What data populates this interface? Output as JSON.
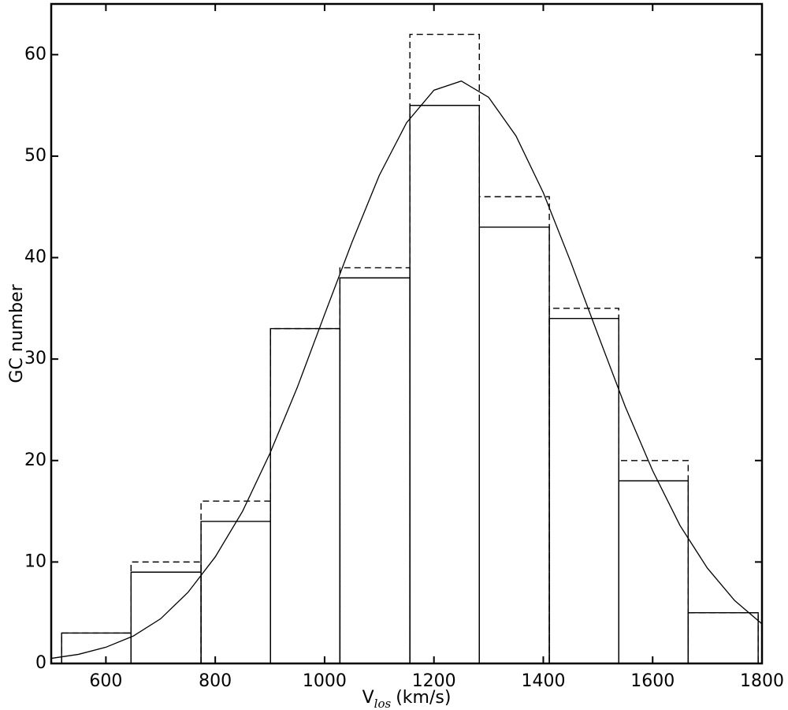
{
  "chart_data": {
    "type": "histogram",
    "ylabel": "GC number",
    "xlabel": {
      "main": "V",
      "subscript": "los",
      "unit": "(km/s)"
    },
    "bins": [
      519,
      646,
      774,
      901,
      1028,
      1156,
      1283,
      1411,
      1538,
      1665,
      1793
    ],
    "series": [
      {
        "values": [
          3,
          9,
          14,
          33,
          38,
          55,
          43,
          34,
          18,
          5
        ],
        "color": "#000000",
        "dashed": false
      },
      {
        "values": [
          3,
          10,
          16,
          33,
          39,
          62,
          46,
          35,
          20,
          5
        ],
        "color": "#000000",
        "dashed": true
      }
    ],
    "curve": {
      "color": "#000000",
      "x": [
        500,
        550,
        600,
        650,
        700,
        750,
        800,
        850,
        900,
        950,
        1000,
        1050,
        1100,
        1150,
        1200,
        1250,
        1300,
        1350,
        1400,
        1450,
        1500,
        1550,
        1600,
        1650,
        1700,
        1750,
        1800
      ],
      "values": [
        0.5,
        0.9,
        1.6,
        2.7,
        4.4,
        7.0,
        10.5,
        15.0,
        20.7,
        27.2,
        34.4,
        41.5,
        48.1,
        53.3,
        56.5,
        57.4,
        55.8,
        52.0,
        46.4,
        39.6,
        32.4,
        25.3,
        19.0,
        13.6,
        9.4,
        6.2,
        3.9
      ]
    },
    "xlim": [
      500,
      1800
    ],
    "xticks": [
      600,
      800,
      1000,
      1200,
      1400,
      1600,
      1800
    ],
    "ylim": [
      0,
      65
    ],
    "yticks": [
      0,
      10,
      20,
      30,
      40,
      50,
      60
    ]
  }
}
